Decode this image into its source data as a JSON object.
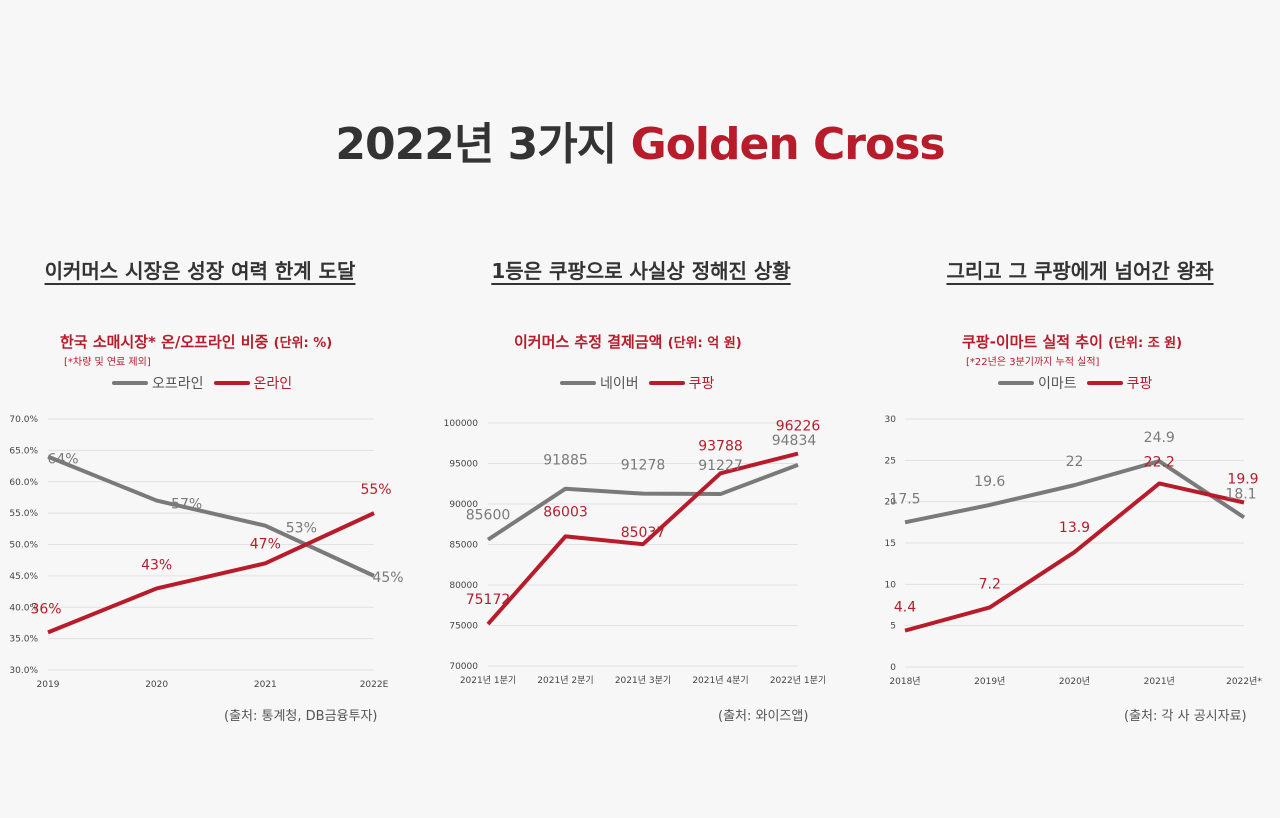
{
  "header": {
    "title_main": "2022년 3가지",
    "title_accent": "Golden Cross"
  },
  "colors": {
    "gray": "#7a7a7a",
    "red": "#b81c2b",
    "grid": "#e2e2e2"
  },
  "panels": [
    {
      "heading": "이커머스 시장은 성장 여력 한계 도달",
      "chart_title": "한국 소매시장* 온/오프라인 비중",
      "chart_unit": "(단위: %)",
      "chart_note": "[*차량 및 연료 제외]",
      "source": "(출처: 통계청, DB금융투자)"
    },
    {
      "heading": "1등은 쿠팡으로 사실상 정해진 상황",
      "chart_title": "이커머스 추정 결제금액",
      "chart_unit": "(단위: 억 원)",
      "chart_note": "",
      "source": "(출처: 와이즈앱)"
    },
    {
      "heading": "그리고 그 쿠팡에게 넘어간 왕좌",
      "chart_title": "쿠팡-이마트 실적 추이",
      "chart_unit": "(단위: 조 원)",
      "chart_note": "[*22년은 3분기까지 누적 실적]",
      "source": "(출처: 각 사 공시자료)"
    }
  ],
  "chart_data": [
    {
      "type": "line",
      "title": "한국 소매시장* 온/오프라인 비중",
      "categories": [
        "2019",
        "2020",
        "2021",
        "2022E"
      ],
      "ylim": [
        30,
        70
      ],
      "yticks": [
        30,
        35,
        40,
        45,
        50,
        55,
        60,
        65,
        70
      ],
      "ytick_labels": [
        "30.0%",
        "35.0%",
        "40.0%",
        "45.0%",
        "50.0%",
        "55.0%",
        "60.0%",
        "65.0%",
        "70.0%"
      ],
      "grid": true,
      "legend_position": "top",
      "series": [
        {
          "name": "오프라인",
          "color": "#7a7a7a",
          "values": [
            64,
            57,
            53,
            45
          ],
          "labels": [
            "64%",
            "57%",
            "53%",
            "45%"
          ]
        },
        {
          "name": "온라인",
          "color": "#b81c2b",
          "values": [
            36,
            43,
            47,
            55
          ],
          "labels": [
            "36%",
            "43%",
            "47%",
            "55%"
          ]
        }
      ]
    },
    {
      "type": "line",
      "title": "이커머스 추정 결제금액",
      "categories": [
        "2021년 1분기",
        "2021년 2분기",
        "2021년 3분기",
        "2021년 4분기",
        "2022년 1분기"
      ],
      "ylim": [
        70000,
        100000
      ],
      "yticks": [
        70000,
        75000,
        80000,
        85000,
        90000,
        95000,
        100000
      ],
      "ytick_labels": [
        "70000",
        "75000",
        "80000",
        "85000",
        "90000",
        "95000",
        "100000"
      ],
      "grid": true,
      "legend_position": "top",
      "series": [
        {
          "name": "네이버",
          "color": "#7a7a7a",
          "values": [
            85600,
            91885,
            91278,
            91227,
            94834
          ],
          "labels": [
            "85600",
            "91885",
            "91278",
            "91227",
            "94834"
          ]
        },
        {
          "name": "쿠팡",
          "color": "#b81c2b",
          "values": [
            75172,
            86003,
            85037,
            93788,
            96226
          ],
          "labels": [
            "75172",
            "86003",
            "85037",
            "93788",
            "96226"
          ]
        }
      ]
    },
    {
      "type": "line",
      "title": "쿠팡-이마트 실적 추이",
      "categories": [
        "2018년",
        "2019년",
        "2020년",
        "2021년",
        "2022년*"
      ],
      "ylim": [
        0,
        30
      ],
      "yticks": [
        0,
        5,
        10,
        15,
        20,
        25,
        30
      ],
      "ytick_labels": [
        "0",
        "5",
        "10",
        "15",
        "20",
        "25",
        "30"
      ],
      "grid": true,
      "legend_position": "top",
      "series": [
        {
          "name": "이마트",
          "color": "#7a7a7a",
          "values": [
            17.5,
            19.6,
            22,
            24.9,
            18.1
          ],
          "labels": [
            "17.5",
            "19.6",
            "22",
            "24.9",
            "18.1"
          ]
        },
        {
          "name": "쿠팡",
          "color": "#b81c2b",
          "values": [
            4.4,
            7.2,
            13.9,
            22.2,
            19.9
          ],
          "labels": [
            "4.4",
            "7.2",
            "13.9",
            "22.2",
            "19.9"
          ]
        }
      ]
    }
  ]
}
